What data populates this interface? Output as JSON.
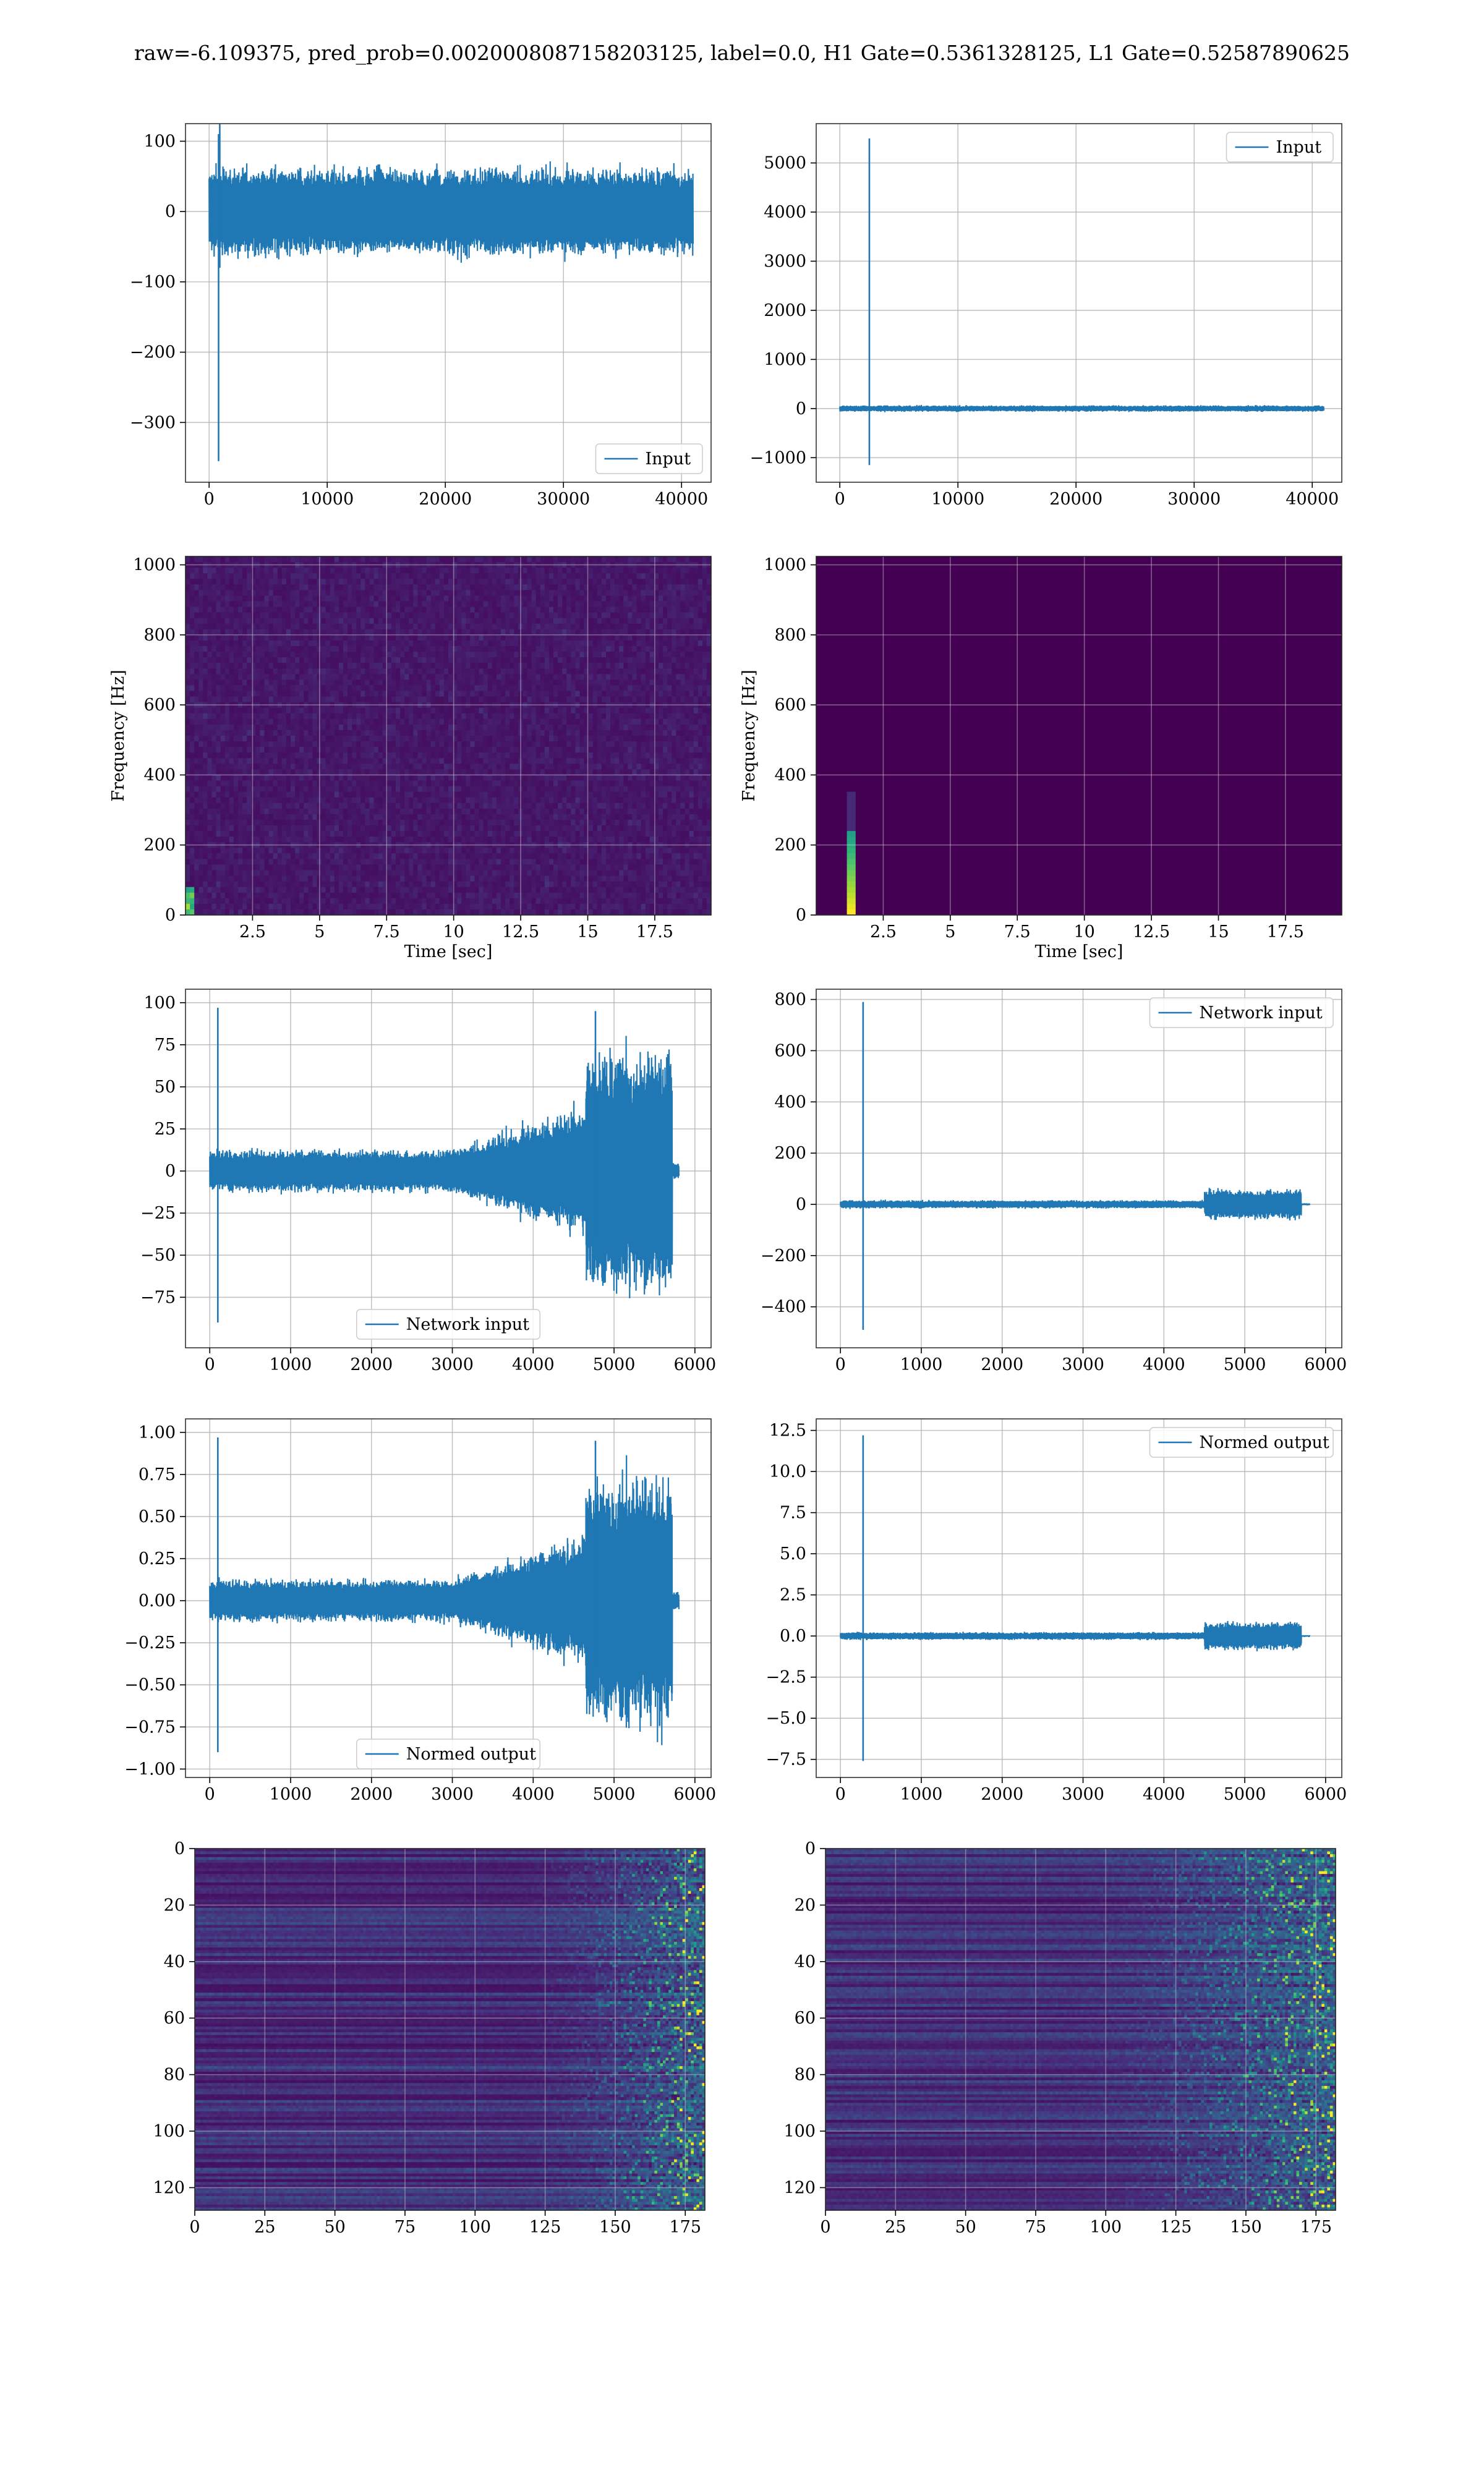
{
  "suptitle": "raw=-6.109375, pred_prob=0.0020008087158203125, label=0.0, H1 Gate=0.5361328125, L1 Gate=0.52587890625",
  "colors": {
    "line": "#1f77b4",
    "grid": "#b0b0b0",
    "viridis_low": "#440154",
    "viridis_mid": "#21918c",
    "viridis_high": "#fde725"
  },
  "chart_data": [
    {
      "id": "h1-input",
      "type": "line",
      "legend": [
        "Input"
      ],
      "legend_loc": "lower right",
      "xlim": [
        -2000,
        42500
      ],
      "ylim": [
        -385,
        125
      ],
      "xticks": [
        0,
        10000,
        20000,
        30000,
        40000
      ],
      "yticks": [
        100,
        0,
        -100,
        -200,
        -300
      ],
      "x_max": 40960,
      "noise_amp": 65,
      "segments": [
        {
          "x0": 0,
          "x1": 40960,
          "type": "noise",
          "amp": 60
        }
      ],
      "spikes": [
        {
          "x": 800,
          "lo": -355,
          "hi": 110
        },
        {
          "x": 900,
          "lo": -80,
          "hi": 132
        }
      ]
    },
    {
      "id": "l1-input",
      "type": "line",
      "legend": [
        "Input"
      ],
      "legend_loc": "upper right",
      "xlim": [
        -2000,
        42500
      ],
      "ylim": [
        -1500,
        5800
      ],
      "xticks": [
        0,
        10000,
        20000,
        30000,
        40000
      ],
      "yticks": [
        5000,
        4000,
        3000,
        2000,
        1000,
        0,
        -1000
      ],
      "x_max": 40960,
      "segments": [
        {
          "x0": 0,
          "x1": 40960,
          "type": "noise",
          "amp": 60
        }
      ],
      "spikes": [
        {
          "x": 2500,
          "lo": -1150,
          "hi": 5500
        }
      ]
    },
    {
      "id": "h1-spectrogram",
      "type": "heatmap",
      "variant": "noise",
      "xlabel": "Time [sec]",
      "ylabel": "Frequency [Hz]",
      "xlim": [
        0,
        19.6
      ],
      "ylim": [
        0,
        1024
      ],
      "xticks": [
        2.5,
        5.0,
        7.5,
        10.0,
        12.5,
        15.0,
        17.5
      ],
      "yticks": [
        1000,
        800,
        600,
        400,
        200,
        0
      ]
    },
    {
      "id": "l1-spectrogram",
      "type": "heatmap",
      "variant": "glitch",
      "xlabel": "Time [sec]",
      "ylabel": "Frequency [Hz]",
      "xlim": [
        0,
        19.6
      ],
      "ylim": [
        0,
        1024
      ],
      "xticks": [
        2.5,
        5.0,
        7.5,
        10.0,
        12.5,
        15.0,
        17.5
      ],
      "yticks": [
        1000,
        800,
        600,
        400,
        200,
        0
      ]
    },
    {
      "id": "h1-network-input",
      "type": "line",
      "legend": [
        "Network input"
      ],
      "legend_loc": "lower center",
      "xlim": [
        -300,
        6200
      ],
      "ylim": [
        -105,
        108
      ],
      "xticks": [
        0,
        1000,
        2000,
        3000,
        4000,
        5000,
        6000
      ],
      "yticks": [
        100,
        75,
        50,
        25,
        0,
        -25,
        -50,
        -75
      ],
      "x_max": 5800,
      "segments": [
        {
          "x0": 0,
          "x1": 3000,
          "type": "noise",
          "amp": 12
        },
        {
          "x0": 3000,
          "x1": 4000,
          "type": "ramp",
          "amp0": 12,
          "amp1": 28
        },
        {
          "x0": 4000,
          "x1": 4650,
          "type": "ramp",
          "amp0": 28,
          "amp1": 38
        },
        {
          "x0": 4650,
          "x1": 5720,
          "type": "noise",
          "amp": 70
        },
        {
          "x0": 5720,
          "x1": 5800,
          "type": "noise",
          "amp": 5
        }
      ],
      "spikes": [
        {
          "x": 100,
          "lo": -90,
          "hi": 97
        },
        {
          "x": 4770,
          "lo": -40,
          "hi": 95
        }
      ]
    },
    {
      "id": "l1-network-input",
      "type": "line",
      "legend": [
        "Network input"
      ],
      "legend_loc": "upper right",
      "xlim": [
        -300,
        6200
      ],
      "ylim": [
        -560,
        840
      ],
      "xticks": [
        0,
        1000,
        2000,
        3000,
        4000,
        5000,
        6000
      ],
      "yticks": [
        800,
        600,
        400,
        200,
        0,
        -200,
        -400
      ],
      "x_max": 5800,
      "segments": [
        {
          "x0": 0,
          "x1": 4500,
          "type": "noise",
          "amp": 15
        },
        {
          "x0": 4500,
          "x1": 5700,
          "type": "noise",
          "amp": 55
        },
        {
          "x0": 5700,
          "x1": 5800,
          "type": "noise",
          "amp": 4
        }
      ],
      "spikes": [
        {
          "x": 280,
          "lo": -490,
          "hi": 790
        }
      ]
    },
    {
      "id": "h1-normed-output",
      "type": "line",
      "legend": [
        "Normed output"
      ],
      "legend_loc": "lower center",
      "xlim": [
        -300,
        6200
      ],
      "ylim": [
        -1.05,
        1.08
      ],
      "xticks": [
        0,
        1000,
        2000,
        3000,
        4000,
        5000,
        6000
      ],
      "yticks": [
        "1.00",
        "0.75",
        "0.50",
        "0.25",
        "0.00",
        "−0.25",
        "−0.50",
        "−0.75",
        "−1.00"
      ],
      "ytick_values": [
        1.0,
        0.75,
        0.5,
        0.25,
        0.0,
        -0.25,
        -0.5,
        -0.75,
        -1.0
      ],
      "x_max": 5800,
      "segments": [
        {
          "x0": 0,
          "x1": 3000,
          "type": "noise",
          "amp": 0.12
        },
        {
          "x0": 3000,
          "x1": 4000,
          "type": "ramp",
          "amp0": 0.12,
          "amp1": 0.28
        },
        {
          "x0": 4000,
          "x1": 4650,
          "type": "ramp",
          "amp0": 0.28,
          "amp1": 0.38
        },
        {
          "x0": 4650,
          "x1": 5720,
          "type": "noise",
          "amp": 0.7
        },
        {
          "x0": 5720,
          "x1": 5800,
          "type": "noise",
          "amp": 0.05
        }
      ],
      "spikes": [
        {
          "x": 100,
          "lo": -0.9,
          "hi": 0.97
        },
        {
          "x": 4770,
          "lo": -0.4,
          "hi": 0.95
        }
      ]
    },
    {
      "id": "l1-normed-output",
      "type": "line",
      "legend": [
        "Normed output"
      ],
      "legend_loc": "upper right",
      "xlim": [
        -300,
        6200
      ],
      "ylim": [
        -8.6,
        13.2
      ],
      "xticks": [
        0,
        1000,
        2000,
        3000,
        4000,
        5000,
        6000
      ],
      "yticks": [
        "12.5",
        "10.0",
        "7.5",
        "5.0",
        "2.5",
        "0.0",
        "−2.5",
        "−5.0",
        "−7.5"
      ],
      "ytick_values": [
        12.5,
        10.0,
        7.5,
        5.0,
        2.5,
        0.0,
        -2.5,
        -5.0,
        -7.5
      ],
      "x_max": 5800,
      "segments": [
        {
          "x0": 0,
          "x1": 4500,
          "type": "noise",
          "amp": 0.22
        },
        {
          "x0": 4500,
          "x1": 5700,
          "type": "noise",
          "amp": 0.8
        },
        {
          "x0": 5700,
          "x1": 5800,
          "type": "noise",
          "amp": 0.05
        }
      ],
      "spikes": [
        {
          "x": 280,
          "lo": -7.6,
          "hi": 12.2
        }
      ]
    },
    {
      "id": "h1-feature-map",
      "type": "heatmap",
      "variant": "features",
      "xlim": [
        0,
        182
      ],
      "ylim": [
        128,
        0
      ],
      "xticks": [
        0,
        25,
        50,
        75,
        100,
        125,
        150,
        175
      ],
      "yticks": [
        0,
        20,
        40,
        60,
        80,
        100,
        120
      ]
    },
    {
      "id": "l1-feature-map",
      "type": "heatmap",
      "variant": "features2",
      "xlim": [
        0,
        182
      ],
      "ylim": [
        128,
        0
      ],
      "xticks": [
        0,
        25,
        50,
        75,
        100,
        125,
        150,
        175
      ],
      "yticks": [
        0,
        20,
        40,
        60,
        80,
        100,
        120
      ]
    }
  ]
}
